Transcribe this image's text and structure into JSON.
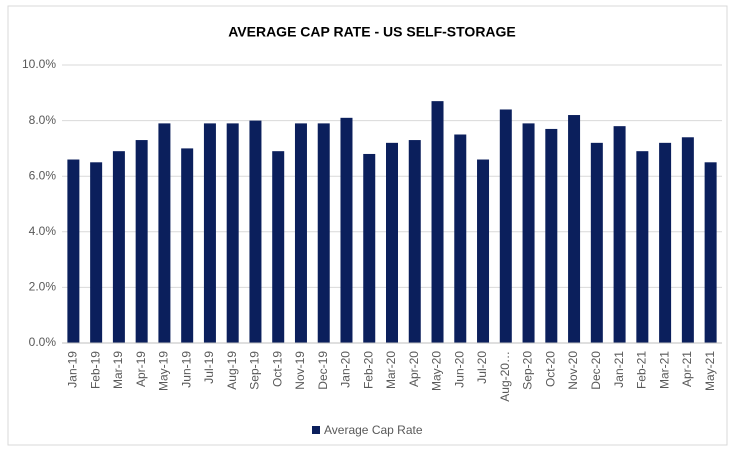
{
  "chart_data": {
    "type": "bar",
    "title": "AVERAGE CAP RATE - US SELF-STORAGE",
    "categories": [
      "Jan-19",
      "Feb-19",
      "Mar-19",
      "Apr-19",
      "May-19",
      "Jun-19",
      "Jul-19",
      "Aug-19",
      "Sep-19",
      "Oct-19",
      "Nov-19",
      "Dec-19",
      "Jan-20",
      "Feb-20",
      "Mar-20",
      "Apr-20",
      "May-20",
      "Jun-20",
      "Jul-20",
      "Aug-20…",
      "Sep-20",
      "Oct-20",
      "Nov-20",
      "Dec-20",
      "Jan-21",
      "Feb-21",
      "Mar-21",
      "Apr-21",
      "May-21"
    ],
    "series": [
      {
        "name": "Average Cap Rate",
        "color": "#0b1f5c",
        "values": [
          6.6,
          6.5,
          6.9,
          7.3,
          7.9,
          7.0,
          7.9,
          7.9,
          8.0,
          6.9,
          7.9,
          7.9,
          8.1,
          6.8,
          7.2,
          7.3,
          8.7,
          7.5,
          6.6,
          8.4,
          7.9,
          7.7,
          8.2,
          7.2,
          7.8,
          6.9,
          7.2,
          7.4,
          6.5
        ]
      }
    ],
    "ylim": [
      0,
      10
    ],
    "yticks": [
      {
        "value": 0,
        "label": "0.0%"
      },
      {
        "value": 2,
        "label": "2.0%"
      },
      {
        "value": 4,
        "label": "4.0%"
      },
      {
        "value": 6,
        "label": "6.0%"
      },
      {
        "value": 8,
        "label": "8.0%"
      },
      {
        "value": 10,
        "label": "10.0%"
      }
    ],
    "grid": true,
    "legend": "bottom"
  }
}
